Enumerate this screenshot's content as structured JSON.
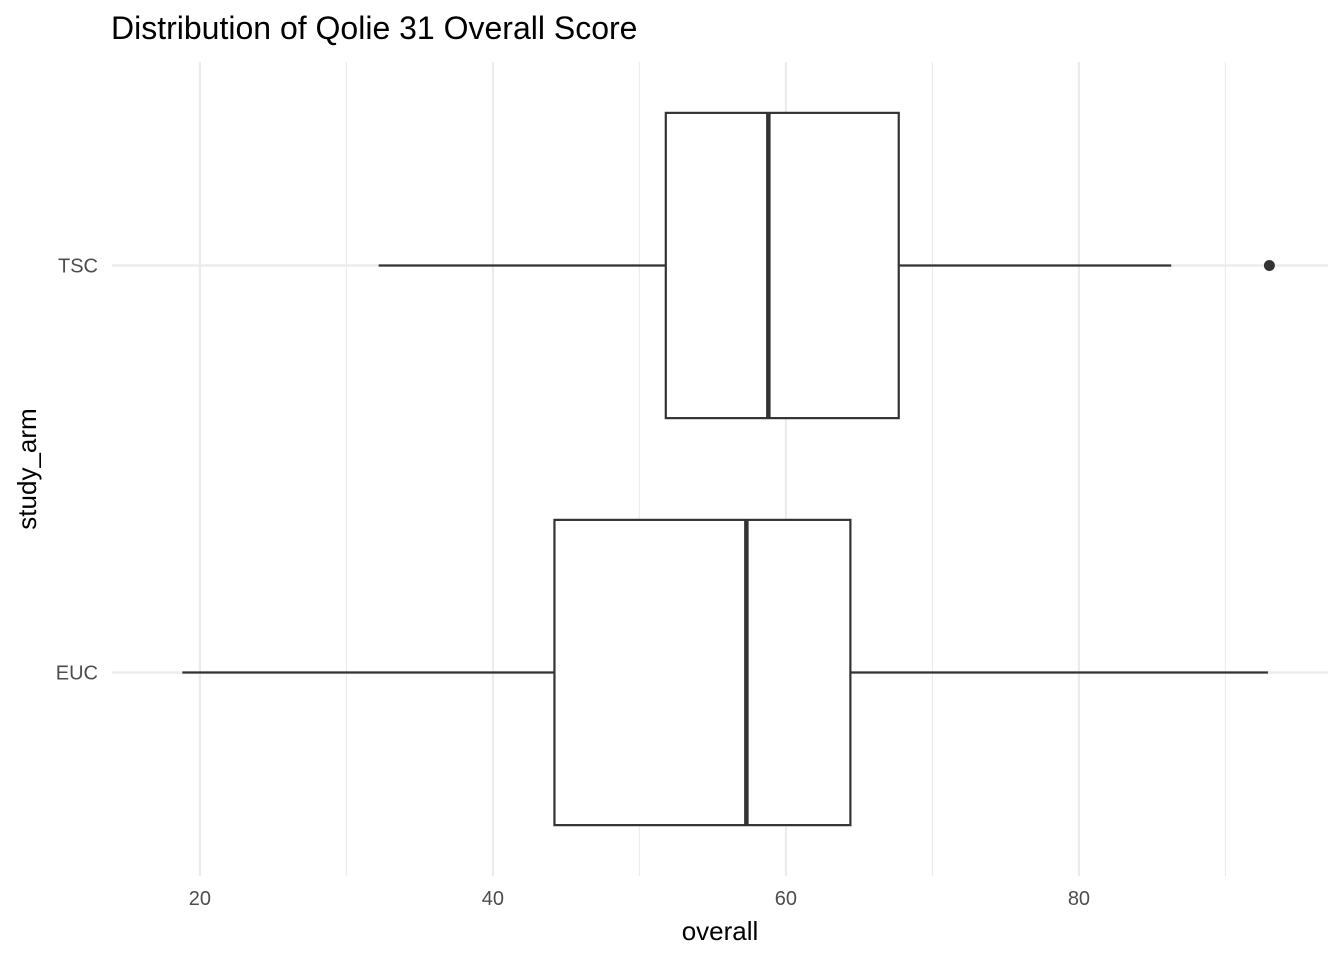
{
  "chart_data": {
    "type": "boxplot",
    "orientation": "horizontal",
    "title": "Distribution of Qolie 31 Overall Score",
    "xlabel": "overall",
    "ylabel": "study_arm",
    "xlim": [
      14,
      97
    ],
    "x_ticks": [
      20,
      40,
      60,
      80
    ],
    "x_tick_labels": [
      "20",
      "40",
      "60",
      "80"
    ],
    "grid": true,
    "legend": "none",
    "categories": [
      "TSC",
      "EUC"
    ],
    "boxes": [
      {
        "category": "TSC",
        "whisker_low": 32.2,
        "q1": 51.8,
        "median": 58.8,
        "q3": 67.7,
        "whisker_high": 86.3,
        "outliers": [
          93.0
        ]
      },
      {
        "category": "EUC",
        "whisker_low": 18.8,
        "q1": 44.2,
        "median": 57.3,
        "q3": 64.4,
        "whisker_high": 92.9,
        "outliers": []
      }
    ],
    "colors": {
      "box_stroke": "#333333",
      "box_fill": "#ffffff",
      "grid": "#ebebeb",
      "text": "#000000",
      "tick_text": "#4d4d4d"
    }
  }
}
